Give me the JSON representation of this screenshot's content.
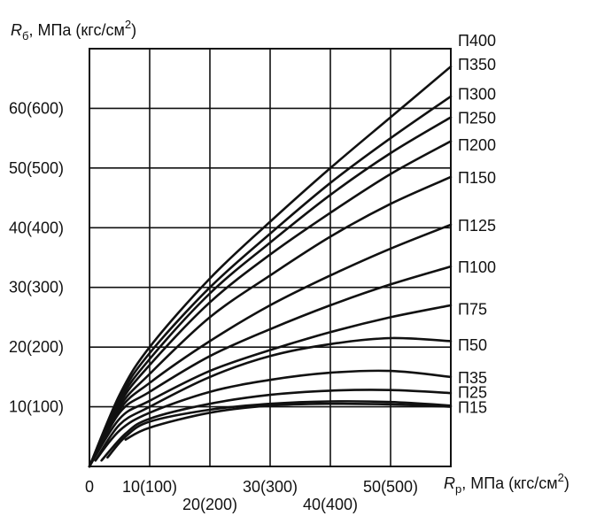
{
  "chart_data": {
    "type": "line",
    "y_axis_title": {
      "symbol": "R",
      "sub": "б",
      "unit_text": ", МПа (кгс/см",
      "sup": "2",
      "close": ")"
    },
    "x_axis_title": {
      "symbol": "R",
      "sub": "р",
      "unit_text": ", МПа (кгс/см",
      "sup": "2",
      "close": ")"
    },
    "xlim": [
      0,
      60
    ],
    "ylim": [
      0,
      70
    ],
    "grid": true,
    "x_ticks": [
      {
        "value": 0,
        "label": "0",
        "row": 1
      },
      {
        "value": 10,
        "label": "10(100)",
        "row": 1
      },
      {
        "value": 20,
        "label": "20(200)",
        "row": 2
      },
      {
        "value": 30,
        "label": "30(300)",
        "row": 1
      },
      {
        "value": 40,
        "label": "40(400)",
        "row": 2
      },
      {
        "value": 50,
        "label": "50(500)",
        "row": 1
      }
    ],
    "y_ticks": [
      {
        "value": 10,
        "label": "10(100)"
      },
      {
        "value": 20,
        "label": "20(200)"
      },
      {
        "value": 30,
        "label": "30(300)"
      },
      {
        "value": 40,
        "label": "40(400)"
      },
      {
        "value": 50,
        "label": "50(500)"
      },
      {
        "value": 60,
        "label": "60(600)"
      }
    ],
    "series": [
      {
        "name": "П400",
        "label_value": 71.5,
        "points": [
          [
            0,
            0
          ],
          [
            5,
            12
          ],
          [
            10,
            20
          ],
          [
            20,
            31.5
          ],
          [
            30,
            41
          ],
          [
            40,
            50
          ],
          [
            50,
            58.5
          ],
          [
            60,
            67
          ]
        ]
      },
      {
        "name": "П350",
        "label_value": 67.5,
        "points": [
          [
            0,
            0
          ],
          [
            5,
            11.5
          ],
          [
            10,
            19
          ],
          [
            20,
            30
          ],
          [
            30,
            39
          ],
          [
            40,
            47.5
          ],
          [
            50,
            55
          ],
          [
            60,
            62
          ]
        ]
      },
      {
        "name": "П300",
        "label_value": 62.5,
        "points": [
          [
            0,
            0
          ],
          [
            5,
            11
          ],
          [
            10,
            18
          ],
          [
            20,
            29
          ],
          [
            30,
            37.5
          ],
          [
            40,
            45.5
          ],
          [
            50,
            52.5
          ],
          [
            60,
            58.5
          ]
        ]
      },
      {
        "name": "П250",
        "label_value": 58.5,
        "points": [
          [
            0,
            0
          ],
          [
            5,
            10.5
          ],
          [
            10,
            17
          ],
          [
            20,
            27.5
          ],
          [
            30,
            35.5
          ],
          [
            40,
            42.5
          ],
          [
            50,
            49
          ],
          [
            60,
            54.5
          ]
        ]
      },
      {
        "name": "П200",
        "label_value": 54,
        "points": [
          [
            0,
            0
          ],
          [
            5,
            10
          ],
          [
            10,
            15.5
          ],
          [
            20,
            25
          ],
          [
            30,
            32
          ],
          [
            40,
            38.5
          ],
          [
            50,
            44
          ],
          [
            60,
            48.5
          ]
        ]
      },
      {
        "name": "П150",
        "label_value": 48.5,
        "points": [
          [
            0,
            0
          ],
          [
            5,
            9.5
          ],
          [
            10,
            14
          ],
          [
            20,
            21
          ],
          [
            30,
            27
          ],
          [
            40,
            32
          ],
          [
            50,
            36.5
          ],
          [
            60,
            40.5
          ]
        ]
      },
      {
        "name": "П125",
        "label_value": 40.5,
        "points": [
          [
            0,
            0
          ],
          [
            5,
            9
          ],
          [
            10,
            12.5
          ],
          [
            20,
            18.5
          ],
          [
            30,
            23
          ],
          [
            40,
            27
          ],
          [
            50,
            30.5
          ],
          [
            60,
            33.5
          ]
        ]
      },
      {
        "name": "П100",
        "label_value": 33.5,
        "points": [
          [
            0,
            0
          ],
          [
            5,
            8
          ],
          [
            10,
            11
          ],
          [
            20,
            16
          ],
          [
            30,
            19.5
          ],
          [
            40,
            22.5
          ],
          [
            50,
            25
          ],
          [
            60,
            27
          ]
        ]
      },
      {
        "name": "П75",
        "label_value": 26.5,
        "points": [
          [
            1,
            1
          ],
          [
            5,
            7
          ],
          [
            10,
            10
          ],
          [
            20,
            15
          ],
          [
            30,
            18.5
          ],
          [
            40,
            20.5
          ],
          [
            50,
            21.5
          ],
          [
            60,
            21
          ]
        ]
      },
      {
        "name": "П50",
        "label_value": 20.5,
        "points": [
          [
            1,
            1
          ],
          [
            5,
            6
          ],
          [
            10,
            9
          ],
          [
            20,
            12.5
          ],
          [
            30,
            14.5
          ],
          [
            40,
            15.7
          ],
          [
            50,
            16
          ],
          [
            60,
            15
          ]
        ]
      },
      {
        "name": "П35",
        "label_value": 15,
        "points": [
          [
            2,
            1
          ],
          [
            6,
            5.5
          ],
          [
            10,
            8
          ],
          [
            20,
            10.5
          ],
          [
            30,
            12
          ],
          [
            40,
            12.7
          ],
          [
            50,
            12.8
          ],
          [
            60,
            12.3
          ]
        ]
      },
      {
        "name": "П25",
        "label_value": 12.5,
        "points": [
          [
            3,
            1.5
          ],
          [
            6,
            5
          ],
          [
            10,
            7.5
          ],
          [
            20,
            9.5
          ],
          [
            30,
            10.5
          ],
          [
            40,
            10.9
          ],
          [
            50,
            10.8
          ],
          [
            60,
            10.2
          ]
        ]
      },
      {
        "name": "П15",
        "label_value": 10,
        "points": [
          [
            6,
            4.5
          ],
          [
            10,
            6.5
          ],
          [
            20,
            9
          ],
          [
            30,
            10.2
          ],
          [
            40,
            10.5
          ],
          [
            50,
            10.4
          ],
          [
            60,
            10
          ]
        ]
      }
    ]
  }
}
